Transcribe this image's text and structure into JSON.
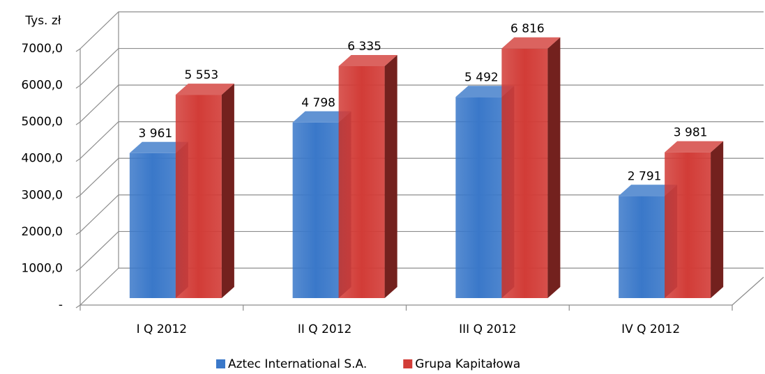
{
  "chart_data": {
    "type": "bar3d",
    "y_label": "Tys. zł",
    "categories": [
      "I Q 2012",
      "II Q 2012",
      "III Q 2012",
      "IV Q 2012"
    ],
    "series": [
      {
        "name": "Aztec International S.A.",
        "color": "#3a78c9",
        "values": [
          3961,
          4798,
          5492,
          2791
        ],
        "value_labels": [
          "3 961",
          "4 798",
          "5 492",
          "2 791"
        ]
      },
      {
        "name": "Grupa Kapitałowa",
        "color": "#d23c37",
        "values": [
          5553,
          6335,
          6816,
          3981
        ],
        "value_labels": [
          "5 553",
          "6 335",
          "6 816",
          "3 981"
        ]
      }
    ],
    "ylim": [
      0,
      7000
    ],
    "yticks": [
      {
        "value": 0,
        "label": "-"
      },
      {
        "value": 1000,
        "label": "1000,0"
      },
      {
        "value": 2000,
        "label": "2000,0"
      },
      {
        "value": 3000,
        "label": "3000,0"
      },
      {
        "value": 4000,
        "label": "4000,0"
      },
      {
        "value": 5000,
        "label": "5000,0"
      },
      {
        "value": 6000,
        "label": "6000,0"
      },
      {
        "value": 7000,
        "label": "7000,0"
      }
    ],
    "grid": true,
    "legend": "bottom"
  }
}
